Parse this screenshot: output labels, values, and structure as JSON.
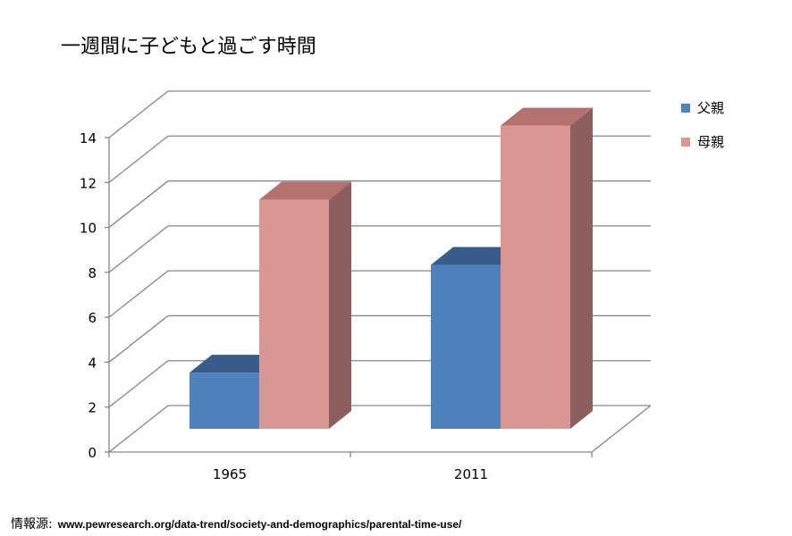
{
  "chart_data": {
    "type": "bar",
    "title": "一週間に子どもと過ごす時間",
    "categories": [
      "1965",
      "2011"
    ],
    "series": [
      {
        "name": "父親",
        "values": [
          2.5,
          7.3
        ]
      },
      {
        "name": "母親",
        "values": [
          10.2,
          13.5
        ]
      }
    ],
    "ylim": [
      0,
      14
    ],
    "yticks": [
      "0",
      "2",
      "4",
      "6",
      "8",
      "10",
      "12",
      "14"
    ],
    "grid": true,
    "legend": "right",
    "three_d": true
  },
  "colors": {
    "father_front": "#4f81bd",
    "father_top": "#385d8a",
    "mother_front": "#d99694",
    "mother_top": "#b37170",
    "mother_side": "#8c5e5c",
    "grid": "#868686"
  },
  "source": {
    "label": "情報源:",
    "url": "www.pewresearch.org/data-trend/society-and-demographics/parental-time-use/"
  }
}
